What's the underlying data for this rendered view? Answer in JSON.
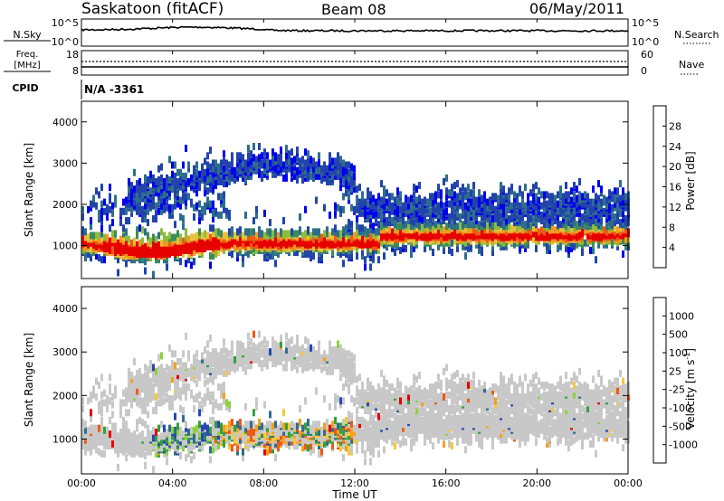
{
  "header": {
    "station": "Saskatoon (fitACF)",
    "beam": "Beam 08",
    "date": "06/May/2011"
  },
  "top_panels": {
    "nsky": {
      "label": "N.Sky",
      "left_ticks": [
        "10^5",
        "10^0"
      ]
    },
    "nsearch": {
      "label": "N.Search",
      "right_ticks": [
        "10^5",
        "10^0"
      ]
    },
    "freq": {
      "label_line1": "Freq.",
      "label_line2": "[MHz]",
      "left_ticks": [
        "18",
        "8"
      ]
    },
    "nave": {
      "label": "Nave",
      "right_ticks": [
        "60",
        "0"
      ]
    },
    "cpid": {
      "label": "CPID",
      "value": "N/A -3361"
    }
  },
  "chart_data": [
    {
      "type": "heatmap",
      "name": "power",
      "ylabel": "Slant Range [km]",
      "ylim": [
        200,
        4500
      ],
      "yticks": [
        1000,
        2000,
        3000,
        4000
      ],
      "xlim_hours": [
        0,
        24
      ],
      "colorbar": {
        "label": "Power [dB]",
        "range": [
          0,
          32
        ],
        "ticks": [
          "28",
          "24",
          "20",
          "16",
          "12",
          "8",
          "4"
        ],
        "colors": [
          "#0000ee",
          "#2244aa",
          "#2e6e8c",
          "#3c8c5a",
          "#8cbc3c",
          "#e6c23c",
          "#f29a1e",
          "#ee5a14",
          "#e60000"
        ]
      }
    },
    {
      "type": "heatmap",
      "name": "velocity",
      "ylabel": "Slant Range [km]",
      "ylim": [
        200,
        4500
      ],
      "yticks": [
        1000,
        2000,
        3000,
        4000
      ],
      "xlim_hours": [
        0,
        24
      ],
      "colorbar": {
        "label": "Velocity [m s",
        "label_sup": "-1",
        "label_end": "]",
        "ticks": [
          "1000",
          "500",
          "100",
          "25",
          "-25",
          "-100",
          "-500",
          "-1000"
        ],
        "colors": [
          "#2a46b4",
          "#2e6e8c",
          "#34a03c",
          "#8cd23c",
          "#c8c8c8",
          "#f5c83c",
          "#f5a01e",
          "#ee5a14",
          "#e60000"
        ]
      }
    }
  ],
  "xaxis": {
    "label": "Time UT",
    "ticks": [
      "00:00",
      "04:00",
      "08:00",
      "12:00",
      "16:00",
      "20:00",
      "00:00"
    ]
  }
}
